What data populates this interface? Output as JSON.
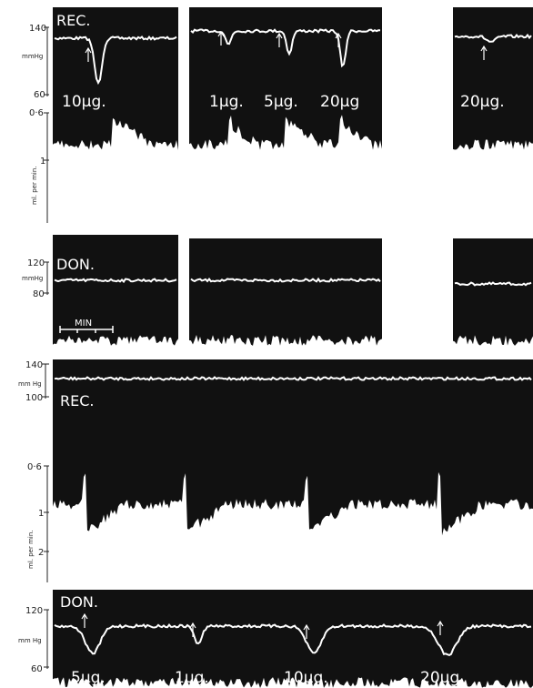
{
  "top_recipient": {
    "label": "REC.",
    "pressure_ticks": [
      "140",
      "60"
    ],
    "pressure_unit": "mmHg",
    "flow_ticks": [
      "0·6",
      "1"
    ],
    "flow_unit": "ml. per min.",
    "doses": [
      "10µg.",
      "1µg.",
      "5µg.",
      "20µg",
      "20µg."
    ]
  },
  "top_donor": {
    "label": "DON.",
    "pressure_ticks": [
      "120",
      "80"
    ],
    "pressure_unit": "mmHg",
    "scale_bar": "MIN"
  },
  "bottom_recipient": {
    "label": "REC.",
    "pressure_ticks": [
      "140",
      "100"
    ],
    "pressure_unit": "mm Hg",
    "flow_ticks": [
      "0·6",
      "1",
      "2"
    ],
    "flow_unit": "ml. per min."
  },
  "bottom_donor": {
    "label": "DON.",
    "pressure_ticks": [
      "120",
      "60"
    ],
    "pressure_unit": "mm Hg",
    "doses": [
      "5µg.",
      "1µg.",
      "10µg.",
      "20µg."
    ]
  }
}
